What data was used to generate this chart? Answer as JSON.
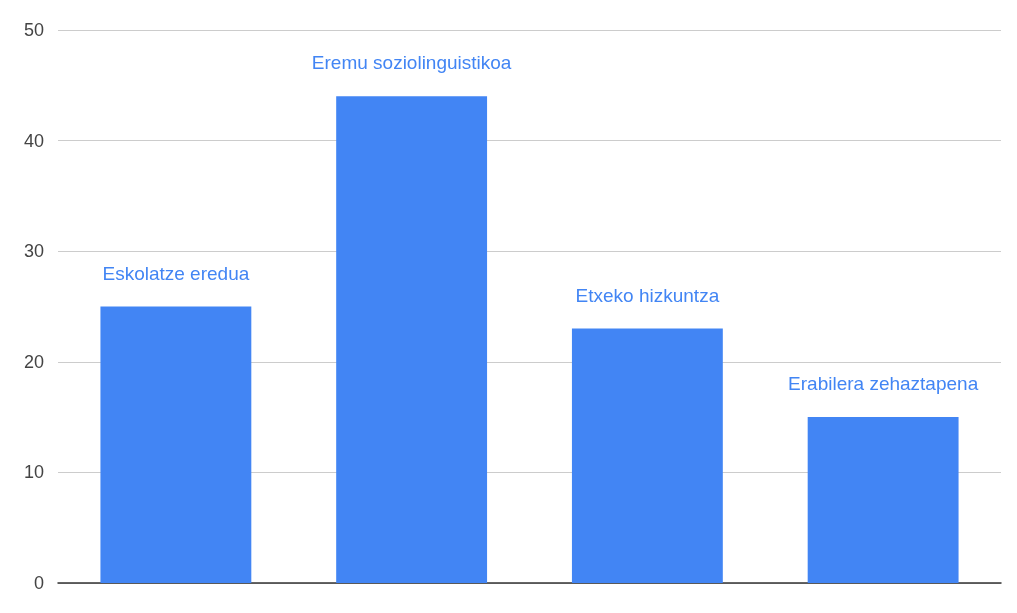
{
  "chart_data": {
    "type": "bar",
    "categories": [
      "Eskolatze eredua",
      "Eremu soziolinguistikoa",
      "Etxeko hizkuntza",
      "Erabilera zehaztapena"
    ],
    "values": [
      25,
      44,
      23,
      15
    ],
    "color": "#4285f4",
    "ylim": [
      0,
      50
    ],
    "yticks": [
      0,
      10,
      20,
      30,
      40,
      50
    ],
    "grid": "y"
  }
}
